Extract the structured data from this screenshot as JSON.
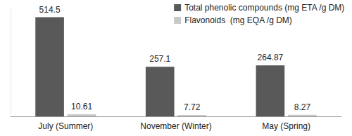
{
  "chart_data": {
    "type": "bar",
    "categories": [
      "July (Summer)",
      "November (Winter)",
      "May (Spring)"
    ],
    "series": [
      {
        "name": "Total phenolic compounds (mg ETA /g DM)",
        "color": "#595959",
        "values": [
          514.5,
          257.1,
          264.87
        ]
      },
      {
        "name": "Flavonoids  (mg EQA /g DM)",
        "color": "#c9c9c9",
        "values": [
          10.61,
          7.72,
          8.27
        ]
      }
    ],
    "ylim": [
      0,
      560
    ],
    "grid": false,
    "legend": "top-right",
    "data_labels": true,
    "tick_labels": "x"
  }
}
